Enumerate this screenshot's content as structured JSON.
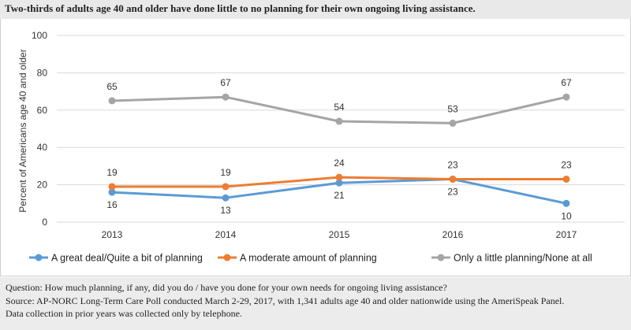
{
  "title": "Two-thirds of adults age 40 and older have done little to no planning for their own ongoing living assistance.",
  "notes": {
    "question": "Question: How much planning, if any, did you do / have you done for your own needs for ongoing living assistance?",
    "source": "Source: AP-NORC Long-Term Care Poll conducted March 2-29, 2017, with 1,341 adults age 40 and older nationwide using the AmeriSpeak Panel.",
    "data_note": "Data collection in prior years was collected only by telephone."
  },
  "chart_data": {
    "type": "line",
    "x": [
      "2013",
      "2014",
      "2015",
      "2016",
      "2017"
    ],
    "ylabel": "Percent of Americans age 40 and older",
    "ylim": [
      0,
      100
    ],
    "yticks": [
      0,
      20,
      40,
      60,
      80,
      100
    ],
    "grid": true,
    "legend_position": "bottom",
    "series": [
      {
        "name": "A great deal/Quite a bit of planning",
        "color": "#5b9bd5",
        "values": [
          16,
          13,
          21,
          23,
          10
        ]
      },
      {
        "name": "A moderate amount of planning",
        "color": "#ed7d31",
        "values": [
          19,
          19,
          24,
          23,
          23
        ]
      },
      {
        "name": "Only a little planning/None at all",
        "color": "#a5a5a5",
        "values": [
          65,
          67,
          54,
          53,
          67
        ]
      }
    ]
  }
}
